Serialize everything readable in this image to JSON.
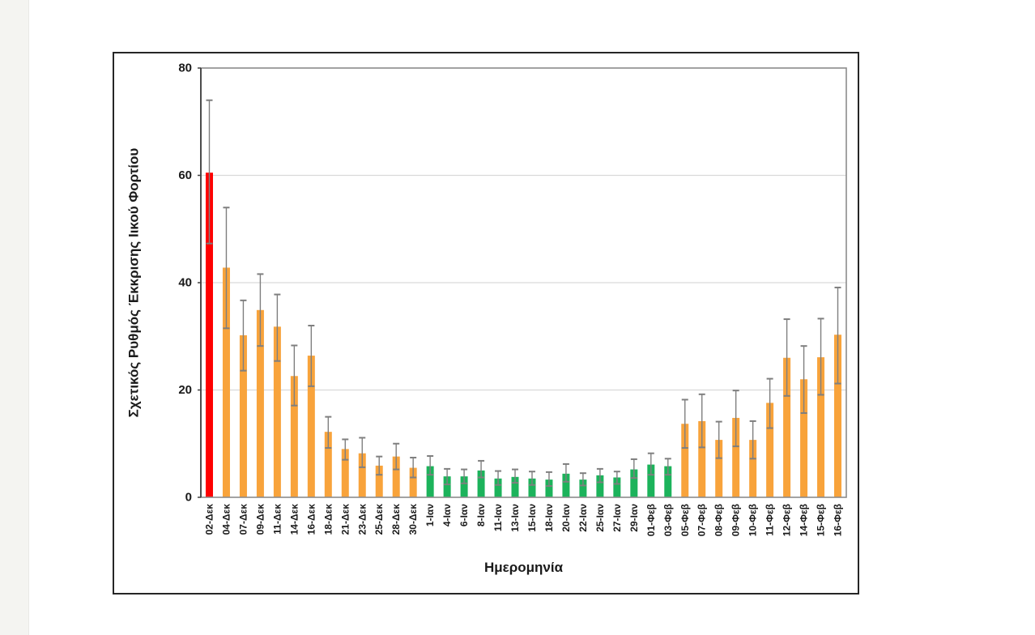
{
  "page": {
    "background_color": "#ffffff",
    "left_strip_color": "#f4f4f1"
  },
  "chart_data": {
    "type": "bar",
    "title": "",
    "xlabel": "Ημερομηνία",
    "ylabel": "Σχετικός Ρυθμός Έκκρισης Ιικού Φορτίου",
    "ylim": [
      0,
      80
    ],
    "yticks": [
      0,
      20,
      40,
      60,
      80
    ],
    "grid": true,
    "legend": false,
    "error_bars": true,
    "palette": {
      "red": "#FE0000",
      "orange": "#F8A33B",
      "green": "#1CB35B"
    },
    "error_bar_color": "#7F7F7F",
    "gridline_color": "#D9D9D9",
    "plot_border_color": "#8C8C8C",
    "axis_line_color": "#404040",
    "frame_border_color": "#262626",
    "categories": [
      "02-Δεκ",
      "04-Δεκ",
      "07-Δεκ",
      "09-Δεκ",
      "11-Δεκ",
      "14-Δεκ",
      "16-Δεκ",
      "18-Δεκ",
      "21-Δεκ",
      "23-Δεκ",
      "25-Δεκ",
      "28-Δεκ",
      "30-Δεκ",
      "1-Ιαν",
      "4-Ιαν",
      "6-Ιαν",
      "8-Ιαν",
      "11-Ιαν",
      "13-Ιαν",
      "15-Ιαν",
      "18-Ιαν",
      "20-Ιαν",
      "22-Ιαν",
      "25-Ιαν",
      "27-Ιαν",
      "29-Ιαν",
      "01-Φεβ",
      "03-Φεβ",
      "05-Φεβ",
      "07-Φεβ",
      "08-Φεβ",
      "09-Φεβ",
      "10-Φεβ",
      "11-Φεβ",
      "12-Φεβ",
      "14-Φεβ",
      "15-Φεβ",
      "16-Φεβ"
    ],
    "values": [
      60.5,
      42.8,
      30.2,
      34.9,
      31.8,
      22.6,
      26.4,
      12.2,
      9.0,
      8.2,
      5.9,
      7.6,
      5.5,
      5.8,
      3.9,
      3.9,
      5.0,
      3.5,
      3.8,
      3.5,
      3.3,
      4.4,
      3.3,
      4.1,
      3.7,
      5.2,
      6.1,
      5.8,
      13.7,
      14.2,
      10.7,
      14.8,
      10.7,
      17.6,
      26.0,
      22.0,
      26.1,
      30.3
    ],
    "error_low": [
      47.3,
      31.5,
      23.6,
      28.2,
      25.4,
      17.1,
      20.7,
      9.2,
      7.0,
      5.6,
      4.2,
      5.2,
      3.7,
      4.2,
      2.4,
      2.6,
      3.7,
      2.3,
      2.7,
      2.3,
      2.1,
      2.9,
      2.2,
      2.8,
      2.5,
      3.6,
      4.2,
      4.2,
      9.2,
      9.3,
      7.3,
      9.5,
      7.2,
      12.9,
      18.9,
      15.7,
      19.1,
      21.2
    ],
    "error_high": [
      74.0,
      54.0,
      36.7,
      41.6,
      37.8,
      28.3,
      32.0,
      15.0,
      10.8,
      11.1,
      7.6,
      10.0,
      7.4,
      7.7,
      5.3,
      5.2,
      6.8,
      4.9,
      5.2,
      4.8,
      4.7,
      6.2,
      4.5,
      5.3,
      4.8,
      7.1,
      8.2,
      7.2,
      18.2,
      19.2,
      14.1,
      19.9,
      14.2,
      22.1,
      33.2,
      28.2,
      33.3,
      39.1
    ],
    "bar_color_keys": [
      "red",
      "orange",
      "orange",
      "orange",
      "orange",
      "orange",
      "orange",
      "orange",
      "orange",
      "orange",
      "orange",
      "orange",
      "orange",
      "green",
      "green",
      "green",
      "green",
      "green",
      "green",
      "green",
      "green",
      "green",
      "green",
      "green",
      "green",
      "green",
      "green",
      "green",
      "orange",
      "orange",
      "orange",
      "orange",
      "orange",
      "orange",
      "orange",
      "orange",
      "orange",
      "orange"
    ]
  }
}
